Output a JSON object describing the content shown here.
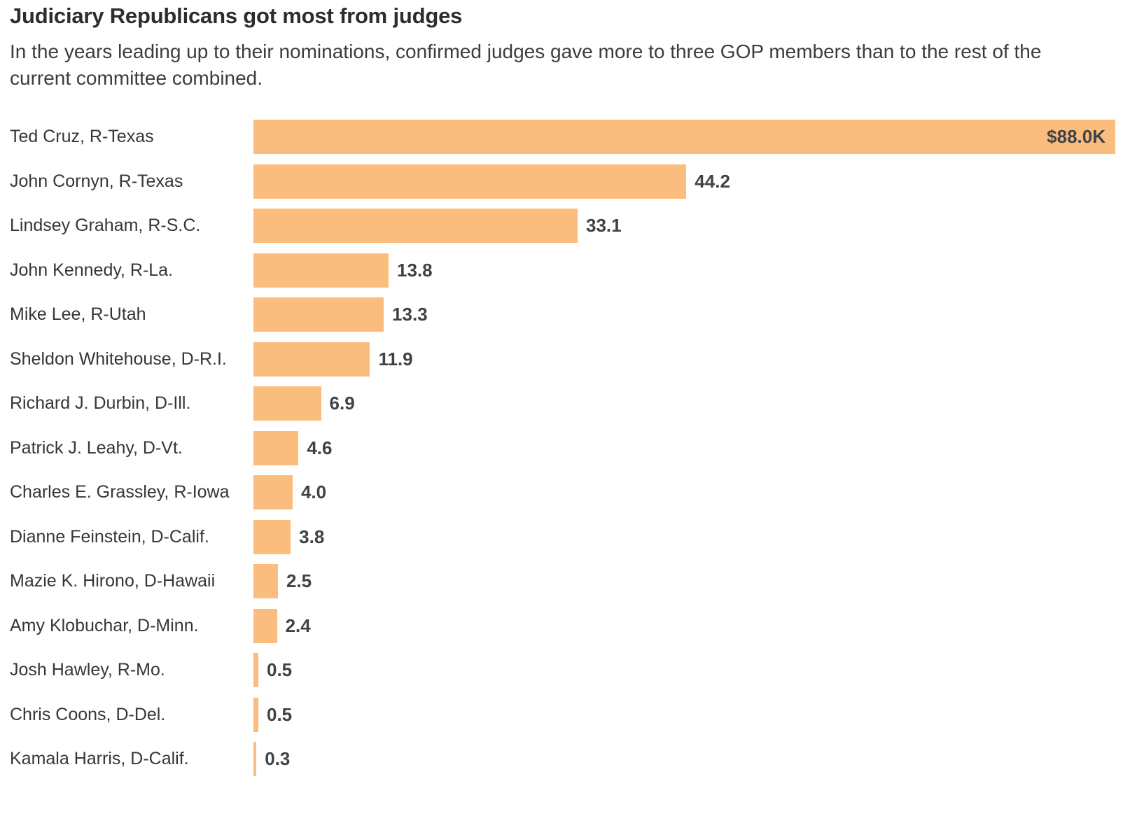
{
  "header": {
    "title": "Judiciary Republicans got most from judges",
    "subtitle": "In the years leading up to their nominations, confirmed judges gave more to three GOP members than to the rest of the current committee combined."
  },
  "colors": {
    "bar": "#FBBD7E",
    "title_text": "#2D2D2D",
    "subtitle_text": "#3C3C3C",
    "label_text": "#363636",
    "value_text": "#3F4347",
    "background": "#FFFFFF"
  },
  "chart_data": {
    "type": "bar",
    "orientation": "horizontal",
    "title": "Judiciary Republicans got most from judges",
    "subtitle": "In the years leading up to their nominations, confirmed judges gave more to three GOP members than to the rest of the current committee combined.",
    "unit": "thousands of dollars",
    "xlim": [
      0,
      88.0
    ],
    "grid": false,
    "legend": false,
    "categories": [
      "Ted Cruz, R-Texas",
      "John Cornyn, R-Texas",
      "Lindsey Graham, R-S.C.",
      "John Kennedy, R-La.",
      "Mike Lee, R-Utah",
      "Sheldon Whitehouse, D-R.I.",
      "Richard J. Durbin, D-Ill.",
      "Patrick J. Leahy, D-Vt.",
      "Charles E. Grassley, R-Iowa",
      "Dianne Feinstein, D-Calif.",
      "Mazie K. Hirono, D-Hawaii",
      "Amy Klobuchar, D-Minn.",
      "Josh Hawley, R-Mo.",
      "Chris Coons, D-Del.",
      "Kamala Harris, D-Calif."
    ],
    "values": [
      88.0,
      44.2,
      33.1,
      13.8,
      13.3,
      11.9,
      6.9,
      4.6,
      4.0,
      3.8,
      2.5,
      2.4,
      0.5,
      0.5,
      0.3
    ],
    "value_labels": [
      "$88.0K",
      "44.2",
      "33.1",
      "13.8",
      "13.3",
      "11.9",
      "6.9",
      "4.6",
      "4.0",
      "3.8",
      "2.5",
      "2.4",
      "0.5",
      "0.5",
      "0.3"
    ],
    "inside_label_index": 0
  }
}
